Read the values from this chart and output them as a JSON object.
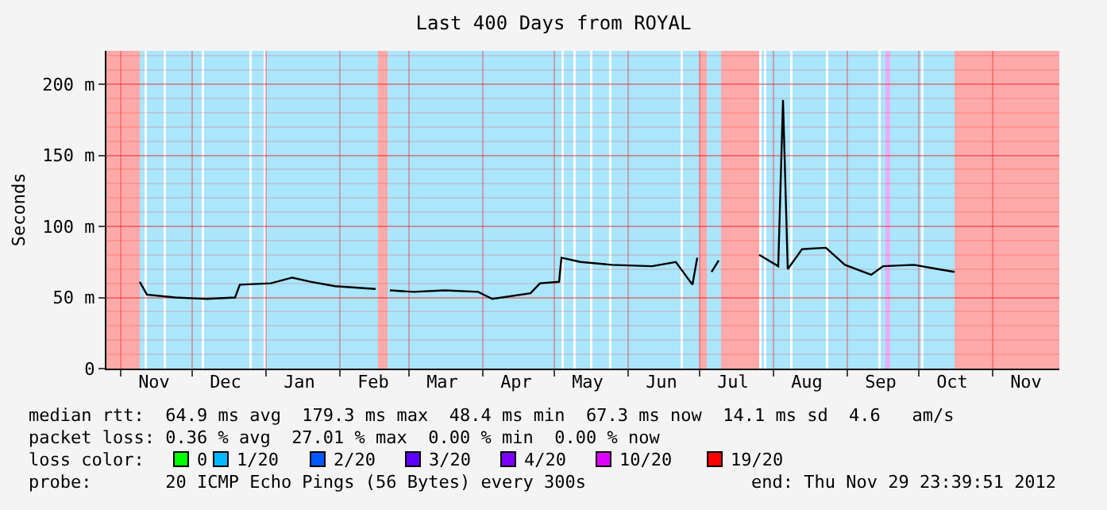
{
  "chart_data": {
    "type": "line",
    "title": "Last 400 Days from ROYAL",
    "ylabel": "Seconds",
    "xlim": [
      "2011-10-26",
      "2012-11-29"
    ],
    "xticks": [
      {
        "value": "2011-11-01",
        "label": null
      },
      {
        "value": "2011-12-01",
        "label": null
      },
      {
        "value": "2012-01-01",
        "label": null
      },
      {
        "value": "2012-02-01",
        "label": null
      },
      {
        "value": "2012-03-01",
        "label": null
      },
      {
        "value": "2012-04-01",
        "label": null
      },
      {
        "value": "2012-05-01",
        "label": null
      },
      {
        "value": "2012-06-01",
        "label": null
      },
      {
        "value": "2012-07-01",
        "label": null
      },
      {
        "value": "2012-08-01",
        "label": null
      },
      {
        "value": "2012-09-01",
        "label": null
      },
      {
        "value": "2012-10-01",
        "label": null
      },
      {
        "value": "2012-11-01",
        "label": null
      },
      {
        "value": "2011-11-15",
        "label": "Nov"
      },
      {
        "value": "2011-12-15",
        "label": "Dec"
      },
      {
        "value": "2012-01-15",
        "label": "Jan"
      },
      {
        "value": "2012-02-15",
        "label": "Feb"
      },
      {
        "value": "2012-03-15",
        "label": "Mar"
      },
      {
        "value": "2012-04-15",
        "label": "Apr"
      },
      {
        "value": "2012-05-15",
        "label": "May"
      },
      {
        "value": "2012-06-15",
        "label": "Jun"
      },
      {
        "value": "2012-07-15",
        "label": "Jul"
      },
      {
        "value": "2012-08-15",
        "label": "Aug"
      },
      {
        "value": "2012-09-15",
        "label": "Sep"
      },
      {
        "value": "2012-10-15",
        "label": "Oct"
      },
      {
        "value": "2012-11-15",
        "label": "Nov"
      }
    ],
    "ylim": [
      0,
      223.5
    ],
    "yticks": [
      0,
      {
        "value": 50,
        "label": "50 m"
      },
      {
        "value": 100,
        "label": "100 m"
      },
      {
        "value": 150,
        "label": "150 m"
      },
      {
        "value": 200,
        "label": "200 m"
      }
    ],
    "grid": true,
    "series": [
      {
        "color": "#000000",
        "x": [
          "2011-11-09",
          "2011-11-12",
          "2011-11-24",
          "2011-12-07",
          "2011-12-19",
          "2011-12-21",
          "2012-01-03",
          "2012-01-12",
          "2012-01-20",
          "2012-01-30",
          "2012-02-16",
          "2012-02-19",
          "2012-02-22",
          "2012-03-03",
          "2012-03-16",
          "2012-03-30",
          "2012-04-05",
          "2012-04-21",
          "2012-04-25",
          "2012-05-03",
          "2012-05-04",
          "2012-05-12",
          "2012-05-25",
          "2012-06-11",
          "2012-06-21",
          "2012-06-28",
          "2012-06-30",
          "2012-07-02",
          "2012-07-06",
          "2012-07-09",
          "2012-07-12",
          "2012-07-26",
          "2012-08-03",
          "2012-08-05",
          "2012-08-07",
          "2012-08-13",
          "2012-08-23",
          "2012-08-31",
          "2012-09-11",
          "2012-09-16",
          "2012-09-29",
          "2012-10-09",
          "2012-10-16"
        ],
        "values": [
          61,
          52,
          50,
          49,
          50,
          59,
          60,
          64,
          61,
          58,
          56,
          null,
          55,
          54,
          55,
          54,
          49,
          53,
          60,
          61,
          78,
          75,
          73,
          72,
          75,
          59,
          78,
          null,
          68,
          76,
          null,
          80,
          72,
          189,
          70,
          84,
          85,
          73,
          66,
          72,
          73,
          70,
          68
        ]
      }
    ],
    "bands": [
      {
        "axis": "x",
        "from": "2011-10-26",
        "to": "2011-11-09",
        "color": "#ffaaaa"
      },
      {
        "axis": "x",
        "from": "2011-11-09",
        "to": "2011-11-11",
        "color": "#aae6fc"
      },
      {
        "axis": "x",
        "from": "2011-11-12",
        "to": "2011-11-19",
        "color": "#aae6fc"
      },
      {
        "axis": "x",
        "from": "2011-11-20",
        "to": "2011-12-05",
        "color": "#aae6fc"
      },
      {
        "axis": "x",
        "from": "2011-12-06",
        "to": "2011-12-25",
        "color": "#aae6fc"
      },
      {
        "axis": "x",
        "from": "2011-12-26",
        "to": "2011-12-31",
        "color": "#aae6fc"
      },
      {
        "axis": "x",
        "from": "2012-01-01",
        "to": "2012-02-17",
        "color": "#aae6fc"
      },
      {
        "axis": "x",
        "from": "2012-02-17",
        "to": "2012-02-21",
        "color": "#ffaaaa"
      },
      {
        "axis": "x",
        "from": "2012-02-21",
        "to": "2012-05-04",
        "color": "#aae6fc"
      },
      {
        "axis": "x",
        "from": "2012-05-05",
        "to": "2012-05-09",
        "color": "#aae6fc"
      },
      {
        "axis": "x",
        "from": "2012-05-10",
        "to": "2012-05-16",
        "color": "#aae6fc"
      },
      {
        "axis": "x",
        "from": "2012-05-17",
        "to": "2012-05-24",
        "color": "#aae6fc"
      },
      {
        "axis": "x",
        "from": "2012-05-25",
        "to": "2012-06-23",
        "color": "#aae6fc"
      },
      {
        "axis": "x",
        "from": "2012-06-24",
        "to": "2012-07-01",
        "color": "#aae6fc"
      },
      {
        "axis": "x",
        "from": "2012-07-01",
        "to": "2012-07-04",
        "color": "#ffaaaa"
      },
      {
        "axis": "x",
        "from": "2012-07-04",
        "to": "2012-07-10",
        "color": "#aae6fc"
      },
      {
        "axis": "x",
        "from": "2012-07-10",
        "to": "2012-07-26",
        "color": "#ffaaaa"
      },
      {
        "axis": "x",
        "from": "2012-07-27",
        "to": "2012-07-28",
        "color": "#aae6fc"
      },
      {
        "axis": "x",
        "from": "2012-07-29",
        "to": "2012-08-08",
        "color": "#aae6fc"
      },
      {
        "axis": "x",
        "from": "2012-08-09",
        "to": "2012-08-23",
        "color": "#aae6fc"
      },
      {
        "axis": "x",
        "from": "2012-08-24",
        "to": "2012-09-14",
        "color": "#aae6fc"
      },
      {
        "axis": "x",
        "from": "2012-09-15",
        "to": "2012-09-17",
        "color": "#aae6fc"
      },
      {
        "axis": "x",
        "from": "2012-09-17",
        "to": "2012-09-19",
        "color": "#e8b0f4"
      },
      {
        "axis": "x",
        "from": "2012-09-19",
        "to": "2012-10-02",
        "color": "#aae6fc"
      },
      {
        "axis": "x",
        "from": "2012-10-03",
        "to": "2012-10-16",
        "color": "#aae6fc"
      },
      {
        "axis": "x",
        "from": "2012-10-16",
        "to": "2012-11-29",
        "color": "#ffaaaa"
      }
    ],
    "annotations": [
      "median rtt:  64.9 ms avg  179.3 ms max  48.4 ms min  67.3 ms now  14.1 ms sd  4.6   am/s",
      "packet loss: 0.36 % avg  27.01 % max  0.00 % min  0.00 % now",
      "loss color:",
      "0",
      "1/20",
      "2/20",
      "3/20",
      "4/20",
      "10/20",
      "19/20",
      "probe:       20 ICMP Echo Pings (56 Bytes) every 300s",
      "end: Thu Nov 29 23:39:51 2012"
    ]
  }
}
